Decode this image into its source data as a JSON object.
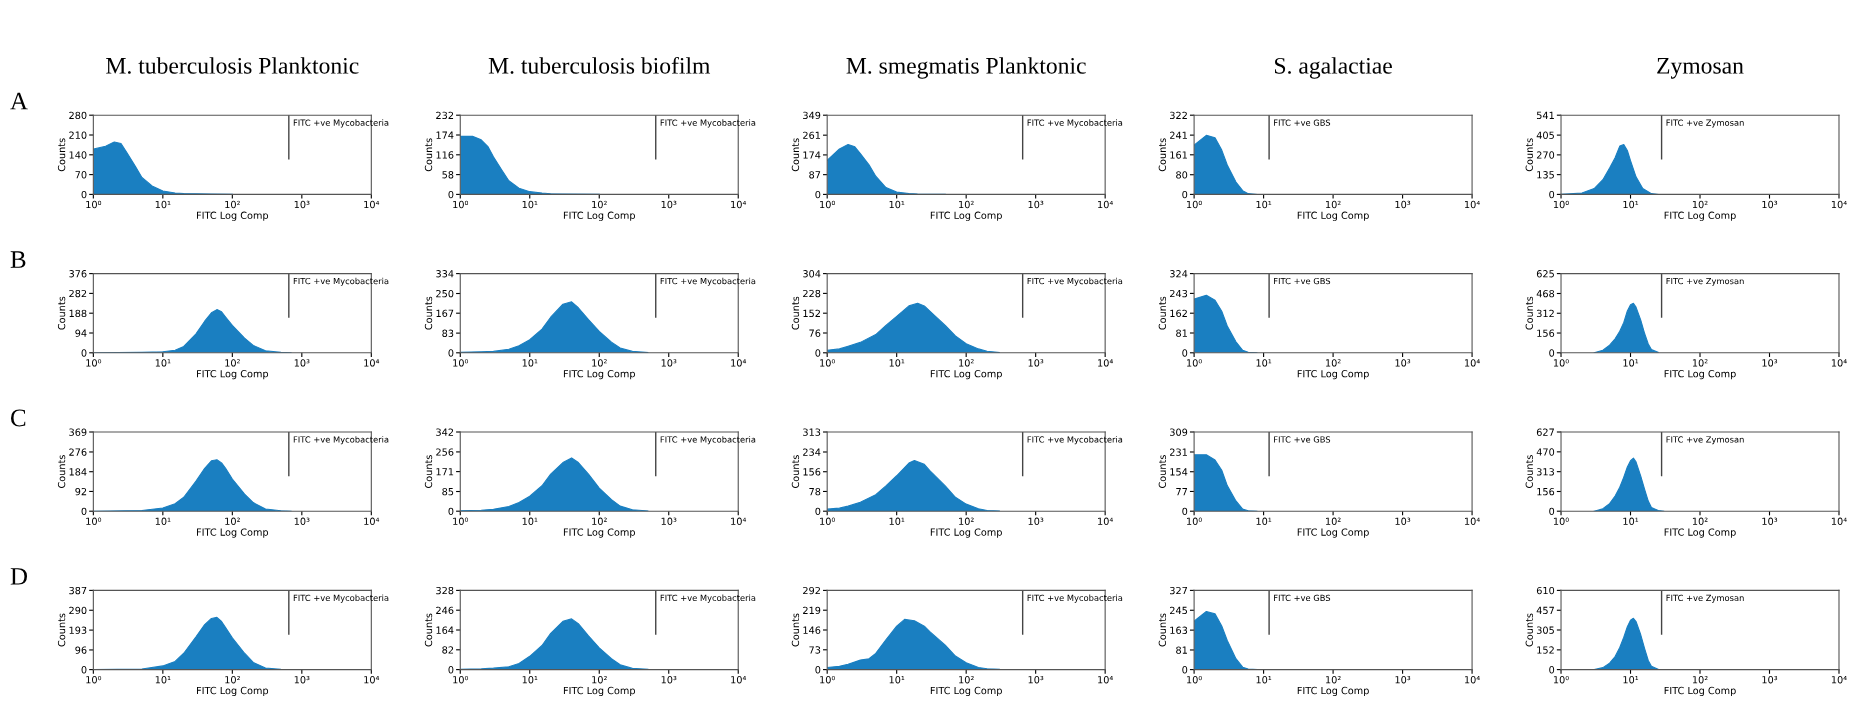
{
  "chart_data": [
    {
      "type": "area",
      "title": "M. tuberculosis Planktonic",
      "annotations": [
        "A"
      ],
      "xlabel": "FITC Log Comp",
      "ylabel": "Counts",
      "color": "#1a7fc1",
      "log": "x",
      "xlim": [
        1,
        10000
      ],
      "xticks": [
        {
          "value": 1,
          "label": "10⁰"
        },
        {
          "value": 10,
          "label": "10¹"
        },
        {
          "value": 100,
          "label": "10²"
        },
        {
          "value": 1000,
          "label": "10³"
        },
        {
          "value": 10000,
          "label": "10⁴"
        }
      ],
      "ylim": [
        0,
        280
      ],
      "yticks": [
        0,
        70,
        140,
        210,
        280
      ],
      "ref_lines": [
        {
          "axis": "x",
          "value": 650,
          "label": "FITC +ve Mycobacteria"
        }
      ],
      "x": [
        1,
        1.5,
        2,
        2.5,
        3,
        4,
        5,
        7,
        10,
        15,
        20,
        30,
        50,
        100
      ],
      "values": [
        160,
        170,
        185,
        180,
        150,
        100,
        60,
        30,
        12,
        5,
        3,
        2,
        1,
        0
      ]
    },
    {
      "type": "area",
      "title": "M. tuberculosis biofilm",
      "xlabel": "FITC Log Comp",
      "ylabel": "Counts",
      "color": "#1a7fc1",
      "log": "x",
      "xlim": [
        1,
        10000
      ],
      "xticks": [
        {
          "value": 1,
          "label": "10⁰"
        },
        {
          "value": 10,
          "label": "10¹"
        },
        {
          "value": 100,
          "label": "10²"
        },
        {
          "value": 1000,
          "label": "10³"
        },
        {
          "value": 10000,
          "label": "10⁴"
        }
      ],
      "ylim": [
        0,
        232
      ],
      "yticks": [
        0,
        58,
        116,
        174,
        232
      ],
      "ref_lines": [
        {
          "axis": "x",
          "value": 650,
          "label": "FITC +ve Mycobacteria"
        }
      ],
      "x": [
        1,
        1.5,
        2,
        2.5,
        3,
        4,
        5,
        7,
        10,
        15,
        20,
        30,
        100
      ],
      "values": [
        170,
        170,
        160,
        140,
        110,
        70,
        40,
        18,
        8,
        4,
        2,
        1,
        0
      ]
    },
    {
      "type": "area",
      "title": "M. smegmatis Planktonic",
      "xlabel": "FITC Log Comp",
      "ylabel": "Counts",
      "color": "#1a7fc1",
      "log": "x",
      "xlim": [
        1,
        10000
      ],
      "xticks": [
        {
          "value": 1,
          "label": "10⁰"
        },
        {
          "value": 10,
          "label": "10¹"
        },
        {
          "value": 100,
          "label": "10²"
        },
        {
          "value": 1000,
          "label": "10³"
        },
        {
          "value": 10000,
          "label": "10⁴"
        }
      ],
      "ylim": [
        0,
        349
      ],
      "yticks": [
        0,
        87,
        174,
        261,
        349
      ],
      "ref_lines": [
        {
          "axis": "x",
          "value": 650,
          "label": "FITC +ve Mycobacteria"
        }
      ],
      "x": [
        1,
        1.5,
        2,
        2.5,
        3,
        4,
        5,
        7,
        10,
        15,
        20,
        50
      ],
      "values": [
        150,
        200,
        220,
        210,
        180,
        130,
        80,
        30,
        10,
        4,
        2,
        0
      ]
    },
    {
      "type": "area",
      "title": "S. agalactiae",
      "xlabel": "FITC Log Comp",
      "ylabel": "Counts",
      "color": "#1a7fc1",
      "log": "x",
      "xlim": [
        1,
        10000
      ],
      "xticks": [
        {
          "value": 1,
          "label": "10⁰"
        },
        {
          "value": 10,
          "label": "10¹"
        },
        {
          "value": 100,
          "label": "10²"
        },
        {
          "value": 1000,
          "label": "10³"
        },
        {
          "value": 10000,
          "label": "10⁴"
        }
      ],
      "ylim": [
        0,
        322
      ],
      "yticks": [
        0,
        80,
        161,
        241,
        322
      ],
      "ref_lines": [
        {
          "axis": "x",
          "value": 12,
          "label": "FITC +ve GBS"
        }
      ],
      "x": [
        1,
        1.5,
        2,
        2.5,
        3,
        4,
        5,
        6,
        8
      ],
      "values": [
        200,
        240,
        230,
        180,
        120,
        50,
        15,
        3,
        0
      ]
    },
    {
      "type": "area",
      "title": "Zymosan",
      "xlabel": "FITC Log Comp",
      "ylabel": "Counts",
      "color": "#1a7fc1",
      "log": "x",
      "xlim": [
        1,
        10000
      ],
      "xticks": [
        {
          "value": 1,
          "label": "10⁰"
        },
        {
          "value": 10,
          "label": "10¹"
        },
        {
          "value": 100,
          "label": "10²"
        },
        {
          "value": 1000,
          "label": "10³"
        },
        {
          "value": 10000,
          "label": "10⁴"
        }
      ],
      "ylim": [
        0,
        541
      ],
      "yticks": [
        0,
        135,
        270,
        405,
        541
      ],
      "ref_lines": [
        {
          "axis": "x",
          "value": 28,
          "label": "FITC +ve Zymosan"
        }
      ],
      "x": [
        1,
        2,
        3,
        4,
        5,
        6,
        7,
        8,
        9,
        10,
        12,
        15,
        20,
        25
      ],
      "values": [
        0,
        10,
        40,
        100,
        180,
        250,
        330,
        340,
        300,
        230,
        120,
        40,
        5,
        0
      ]
    },
    {
      "type": "area",
      "annotations": [
        "B"
      ],
      "xlabel": "FITC Log Comp",
      "ylabel": "Counts",
      "color": "#1a7fc1",
      "log": "x",
      "xlim": [
        1,
        10000
      ],
      "xticks": [
        {
          "value": 1,
          "label": "10⁰"
        },
        {
          "value": 10,
          "label": "10¹"
        },
        {
          "value": 100,
          "label": "10²"
        },
        {
          "value": 1000,
          "label": "10³"
        },
        {
          "value": 10000,
          "label": "10⁴"
        }
      ],
      "ylim": [
        0,
        376
      ],
      "yticks": [
        0,
        94,
        188,
        282,
        376
      ],
      "ref_lines": [
        {
          "axis": "x",
          "value": 650,
          "label": "FITC +ve Mycobacteria"
        }
      ],
      "x": [
        1,
        5,
        10,
        15,
        20,
        30,
        40,
        50,
        60,
        70,
        80,
        100,
        150,
        200,
        300,
        500,
        700
      ],
      "values": [
        0,
        2,
        5,
        12,
        30,
        90,
        150,
        190,
        205,
        195,
        170,
        130,
        70,
        35,
        10,
        2,
        0
      ]
    },
    {
      "type": "area",
      "xlabel": "FITC Log Comp",
      "ylabel": "Counts",
      "color": "#1a7fc1",
      "log": "x",
      "xlim": [
        1,
        10000
      ],
      "xticks": [
        {
          "value": 1,
          "label": "10⁰"
        },
        {
          "value": 10,
          "label": "10¹"
        },
        {
          "value": 100,
          "label": "10²"
        },
        {
          "value": 1000,
          "label": "10³"
        },
        {
          "value": 10000,
          "label": "10⁴"
        }
      ],
      "ylim": [
        0,
        334
      ],
      "yticks": [
        0,
        83,
        167,
        250,
        334
      ],
      "ref_lines": [
        {
          "axis": "x",
          "value": 650,
          "label": "FITC +ve Mycobacteria"
        }
      ],
      "x": [
        1,
        2,
        3,
        5,
        7,
        10,
        15,
        20,
        30,
        40,
        50,
        70,
        100,
        150,
        200,
        300,
        500
      ],
      "values": [
        2,
        4,
        6,
        15,
        30,
        55,
        100,
        150,
        205,
        215,
        190,
        140,
        90,
        45,
        20,
        6,
        1
      ]
    },
    {
      "type": "area",
      "xlabel": "FITC Log Comp",
      "ylabel": "Counts",
      "color": "#1a7fc1",
      "log": "x",
      "xlim": [
        1,
        10000
      ],
      "xticks": [
        {
          "value": 1,
          "label": "10⁰"
        },
        {
          "value": 10,
          "label": "10¹"
        },
        {
          "value": 100,
          "label": "10²"
        },
        {
          "value": 1000,
          "label": "10³"
        },
        {
          "value": 10000,
          "label": "10⁴"
        }
      ],
      "ylim": [
        0,
        304
      ],
      "yticks": [
        0,
        76,
        152,
        228,
        304
      ],
      "ref_lines": [
        {
          "axis": "x",
          "value": 650,
          "label": "FITC +ve Mycobacteria"
        }
      ],
      "x": [
        1,
        1.5,
        2,
        3,
        5,
        7,
        10,
        15,
        20,
        25,
        30,
        50,
        70,
        100,
        150,
        200,
        300
      ],
      "values": [
        10,
        15,
        25,
        40,
        70,
        105,
        140,
        180,
        190,
        180,
        160,
        105,
        65,
        35,
        15,
        6,
        1
      ]
    },
    {
      "type": "area",
      "xlabel": "FITC Log Comp",
      "ylabel": "Counts",
      "color": "#1a7fc1",
      "log": "x",
      "xlim": [
        1,
        10000
      ],
      "xticks": [
        {
          "value": 1,
          "label": "10⁰"
        },
        {
          "value": 10,
          "label": "10¹"
        },
        {
          "value": 100,
          "label": "10²"
        },
        {
          "value": 1000,
          "label": "10³"
        },
        {
          "value": 10000,
          "label": "10⁴"
        }
      ],
      "ylim": [
        0,
        324
      ],
      "yticks": [
        0,
        81,
        162,
        243,
        324
      ],
      "ref_lines": [
        {
          "axis": "x",
          "value": 12,
          "label": "FITC +ve GBS"
        }
      ],
      "x": [
        1,
        1.5,
        2,
        2.5,
        3,
        4,
        5,
        6,
        8
      ],
      "values": [
        220,
        235,
        215,
        170,
        110,
        45,
        10,
        2,
        0
      ]
    },
    {
      "type": "area",
      "xlabel": "FITC Log Comp",
      "ylabel": "Counts",
      "color": "#1a7fc1",
      "log": "x",
      "xlim": [
        1,
        10000
      ],
      "xticks": [
        {
          "value": 1,
          "label": "10⁰"
        },
        {
          "value": 10,
          "label": "10¹"
        },
        {
          "value": 100,
          "label": "10²"
        },
        {
          "value": 1000,
          "label": "10³"
        },
        {
          "value": 10000,
          "label": "10⁴"
        }
      ],
      "ylim": [
        0,
        625
      ],
      "yticks": [
        0,
        156,
        312,
        468,
        625
      ],
      "ref_lines": [
        {
          "axis": "x",
          "value": 28,
          "label": "FITC +ve Zymosan"
        }
      ],
      "x": [
        3,
        4,
        5,
        6,
        7,
        8,
        9,
        10,
        11,
        12,
        14,
        16,
        18,
        20,
        25
      ],
      "values": [
        0,
        20,
        60,
        110,
        170,
        240,
        330,
        380,
        390,
        360,
        260,
        150,
        70,
        25,
        3
      ]
    },
    {
      "type": "area",
      "annotations": [
        "C"
      ],
      "xlabel": "FITC Log Comp",
      "ylabel": "Counts",
      "color": "#1a7fc1",
      "log": "x",
      "xlim": [
        1,
        10000
      ],
      "xticks": [
        {
          "value": 1,
          "label": "10⁰"
        },
        {
          "value": 10,
          "label": "10¹"
        },
        {
          "value": 100,
          "label": "10²"
        },
        {
          "value": 1000,
          "label": "10³"
        },
        {
          "value": 10000,
          "label": "10⁴"
        }
      ],
      "ylim": [
        0,
        369
      ],
      "yticks": [
        0,
        92,
        184,
        276,
        369
      ],
      "ref_lines": [
        {
          "axis": "x",
          "value": 650,
          "label": "FITC +ve Mycobacteria"
        }
      ],
      "x": [
        1,
        5,
        10,
        15,
        20,
        30,
        40,
        50,
        60,
        70,
        80,
        100,
        150,
        200,
        300,
        500,
        700
      ],
      "values": [
        0,
        3,
        15,
        35,
        65,
        140,
        200,
        235,
        240,
        225,
        200,
        150,
        80,
        40,
        10,
        2,
        0
      ]
    },
    {
      "type": "area",
      "xlabel": "FITC Log Comp",
      "ylabel": "Counts",
      "color": "#1a7fc1",
      "log": "x",
      "xlim": [
        1,
        10000
      ],
      "xticks": [
        {
          "value": 1,
          "label": "10⁰"
        },
        {
          "value": 10,
          "label": "10¹"
        },
        {
          "value": 100,
          "label": "10²"
        },
        {
          "value": 1000,
          "label": "10³"
        },
        {
          "value": 10000,
          "label": "10⁴"
        }
      ],
      "ylim": [
        0,
        342
      ],
      "yticks": [
        0,
        85,
        171,
        256,
        342
      ],
      "ref_lines": [
        {
          "axis": "x",
          "value": 650,
          "label": "FITC +ve Mycobacteria"
        }
      ],
      "x": [
        1,
        2,
        3,
        5,
        7,
        10,
        15,
        20,
        30,
        40,
        50,
        70,
        100,
        150,
        200,
        300,
        500
      ],
      "values": [
        2,
        4,
        8,
        20,
        38,
        65,
        110,
        160,
        210,
        230,
        210,
        160,
        100,
        50,
        22,
        6,
        1
      ]
    },
    {
      "type": "area",
      "xlabel": "FITC Log Comp",
      "ylabel": "Counts",
      "color": "#1a7fc1",
      "log": "x",
      "xlim": [
        1,
        10000
      ],
      "xticks": [
        {
          "value": 1,
          "label": "10⁰"
        },
        {
          "value": 10,
          "label": "10¹"
        },
        {
          "value": 100,
          "label": "10²"
        },
        {
          "value": 1000,
          "label": "10³"
        },
        {
          "value": 10000,
          "label": "10⁴"
        }
      ],
      "ylim": [
        0,
        313
      ],
      "yticks": [
        0,
        78,
        156,
        234,
        313
      ],
      "ref_lines": [
        {
          "axis": "x",
          "value": 650,
          "label": "FITC +ve Mycobacteria"
        }
      ],
      "x": [
        1,
        1.5,
        2,
        3,
        5,
        7,
        10,
        15,
        18,
        25,
        30,
        50,
        70,
        100,
        150,
        200,
        300
      ],
      "values": [
        8,
        12,
        20,
        35,
        65,
        100,
        140,
        190,
        200,
        185,
        160,
        100,
        55,
        28,
        10,
        3,
        1
      ]
    },
    {
      "type": "area",
      "xlabel": "FITC Log Comp",
      "ylabel": "Counts",
      "color": "#1a7fc1",
      "log": "x",
      "xlim": [
        1,
        10000
      ],
      "xticks": [
        {
          "value": 1,
          "label": "10⁰"
        },
        {
          "value": 10,
          "label": "10¹"
        },
        {
          "value": 100,
          "label": "10²"
        },
        {
          "value": 1000,
          "label": "10³"
        },
        {
          "value": 10000,
          "label": "10⁴"
        }
      ],
      "ylim": [
        0,
        309
      ],
      "yticks": [
        0,
        77,
        154,
        231,
        309
      ],
      "ref_lines": [
        {
          "axis": "x",
          "value": 12,
          "label": "FITC +ve GBS"
        }
      ],
      "x": [
        1,
        1.5,
        2,
        2.5,
        3,
        4,
        5,
        6,
        8
      ],
      "values": [
        220,
        220,
        200,
        160,
        100,
        40,
        8,
        2,
        0
      ]
    },
    {
      "type": "area",
      "xlabel": "FITC Log Comp",
      "ylabel": "Counts",
      "color": "#1a7fc1",
      "log": "x",
      "xlim": [
        1,
        10000
      ],
      "xticks": [
        {
          "value": 1,
          "label": "10⁰"
        },
        {
          "value": 10,
          "label": "10¹"
        },
        {
          "value": 100,
          "label": "10²"
        },
        {
          "value": 1000,
          "label": "10³"
        },
        {
          "value": 10000,
          "label": "10⁴"
        }
      ],
      "ylim": [
        0,
        627
      ],
      "yticks": [
        0,
        156,
        313,
        470,
        627
      ],
      "ref_lines": [
        {
          "axis": "x",
          "value": 28,
          "label": "FITC +ve Zymosan"
        }
      ],
      "x": [
        3,
        4,
        5,
        6,
        7,
        8,
        9,
        10,
        11,
        12,
        14,
        16,
        18,
        20,
        25,
        30
      ],
      "values": [
        0,
        20,
        60,
        120,
        190,
        270,
        350,
        400,
        420,
        390,
        280,
        170,
        80,
        30,
        5,
        0
      ]
    },
    {
      "type": "area",
      "annotations": [
        "D"
      ],
      "xlabel": "FITC Log Comp",
      "ylabel": "Counts",
      "color": "#1a7fc1",
      "log": "x",
      "xlim": [
        1,
        10000
      ],
      "xticks": [
        {
          "value": 1,
          "label": "10⁰"
        },
        {
          "value": 10,
          "label": "10¹"
        },
        {
          "value": 100,
          "label": "10²"
        },
        {
          "value": 1000,
          "label": "10³"
        },
        {
          "value": 10000,
          "label": "10⁴"
        }
      ],
      "ylim": [
        0,
        387
      ],
      "yticks": [
        0,
        96,
        193,
        290,
        387
      ],
      "ref_lines": [
        {
          "axis": "x",
          "value": 650,
          "label": "FITC +ve Mycobacteria"
        }
      ],
      "x": [
        1,
        5,
        10,
        15,
        20,
        30,
        40,
        50,
        60,
        70,
        80,
        100,
        150,
        200,
        300,
        500,
        700
      ],
      "values": [
        0,
        3,
        18,
        40,
        80,
        160,
        220,
        250,
        255,
        235,
        205,
        155,
        80,
        35,
        8,
        1,
        0
      ]
    },
    {
      "type": "area",
      "xlabel": "FITC Log Comp",
      "ylabel": "Counts",
      "color": "#1a7fc1",
      "log": "x",
      "xlim": [
        1,
        10000
      ],
      "xticks": [
        {
          "value": 1,
          "label": "10⁰"
        },
        {
          "value": 10,
          "label": "10¹"
        },
        {
          "value": 100,
          "label": "10²"
        },
        {
          "value": 1000,
          "label": "10³"
        },
        {
          "value": 10000,
          "label": "10⁴"
        }
      ],
      "ylim": [
        0,
        328
      ],
      "yticks": [
        0,
        82,
        164,
        246,
        328
      ],
      "ref_lines": [
        {
          "axis": "x",
          "value": 650,
          "label": "FITC +ve Mycobacteria"
        }
      ],
      "x": [
        1,
        2,
        3,
        5,
        7,
        10,
        15,
        20,
        30,
        40,
        50,
        70,
        100,
        150,
        200,
        300,
        500
      ],
      "values": [
        1,
        3,
        6,
        12,
        25,
        55,
        100,
        150,
        200,
        210,
        190,
        140,
        90,
        45,
        20,
        5,
        1
      ]
    },
    {
      "type": "area",
      "xlabel": "FITC Log Comp",
      "ylabel": "Counts",
      "color": "#1a7fc1",
      "log": "x",
      "xlim": [
        1,
        10000
      ],
      "xticks": [
        {
          "value": 1,
          "label": "10⁰"
        },
        {
          "value": 10,
          "label": "10¹"
        },
        {
          "value": 100,
          "label": "10²"
        },
        {
          "value": 1000,
          "label": "10³"
        },
        {
          "value": 10000,
          "label": "10⁴"
        }
      ],
      "ylim": [
        0,
        292
      ],
      "yticks": [
        0,
        73,
        146,
        219,
        292
      ],
      "ref_lines": [
        {
          "axis": "x",
          "value": 650,
          "label": "FITC +ve Mycobacteria"
        }
      ],
      "x": [
        1,
        1.5,
        2,
        3,
        4,
        5,
        7,
        10,
        13,
        18,
        25,
        30,
        50,
        70,
        100,
        150,
        200,
        300
      ],
      "values": [
        8,
        12,
        20,
        35,
        40,
        60,
        110,
        160,
        185,
        180,
        160,
        140,
        90,
        50,
        25,
        8,
        3,
        1
      ]
    },
    {
      "type": "area",
      "xlabel": "FITC Log Comp",
      "ylabel": "Counts",
      "color": "#1a7fc1",
      "log": "x",
      "xlim": [
        1,
        10000
      ],
      "xticks": [
        {
          "value": 1,
          "label": "10⁰"
        },
        {
          "value": 10,
          "label": "10¹"
        },
        {
          "value": 100,
          "label": "10²"
        },
        {
          "value": 1000,
          "label": "10³"
        },
        {
          "value": 10000,
          "label": "10⁴"
        }
      ],
      "ylim": [
        0,
        327
      ],
      "yticks": [
        0,
        81,
        163,
        245,
        327
      ],
      "ref_lines": [
        {
          "axis": "x",
          "value": 12,
          "label": "FITC +ve GBS"
        }
      ],
      "x": [
        1,
        1.5,
        2,
        2.5,
        3,
        4,
        5,
        6,
        8
      ],
      "values": [
        200,
        240,
        230,
        180,
        120,
        45,
        10,
        2,
        0
      ]
    },
    {
      "type": "area",
      "xlabel": "FITC Log Comp",
      "ylabel": "Counts",
      "color": "#1a7fc1",
      "log": "x",
      "xlim": [
        1,
        10000
      ],
      "xticks": [
        {
          "value": 1,
          "label": "10⁰"
        },
        {
          "value": 10,
          "label": "10¹"
        },
        {
          "value": 100,
          "label": "10²"
        },
        {
          "value": 1000,
          "label": "10³"
        },
        {
          "value": 10000,
          "label": "10⁴"
        }
      ],
      "ylim": [
        0,
        610
      ],
      "yticks": [
        0,
        152,
        305,
        457,
        610
      ],
      "ref_lines": [
        {
          "axis": "x",
          "value": 28,
          "label": "FITC +ve Zymosan"
        }
      ],
      "x": [
        3,
        4,
        5,
        6,
        7,
        8,
        9,
        10,
        11,
        12,
        14,
        16,
        18,
        20,
        25
      ],
      "values": [
        0,
        15,
        50,
        100,
        170,
        250,
        330,
        380,
        395,
        370,
        270,
        160,
        70,
        25,
        3
      ]
    }
  ]
}
